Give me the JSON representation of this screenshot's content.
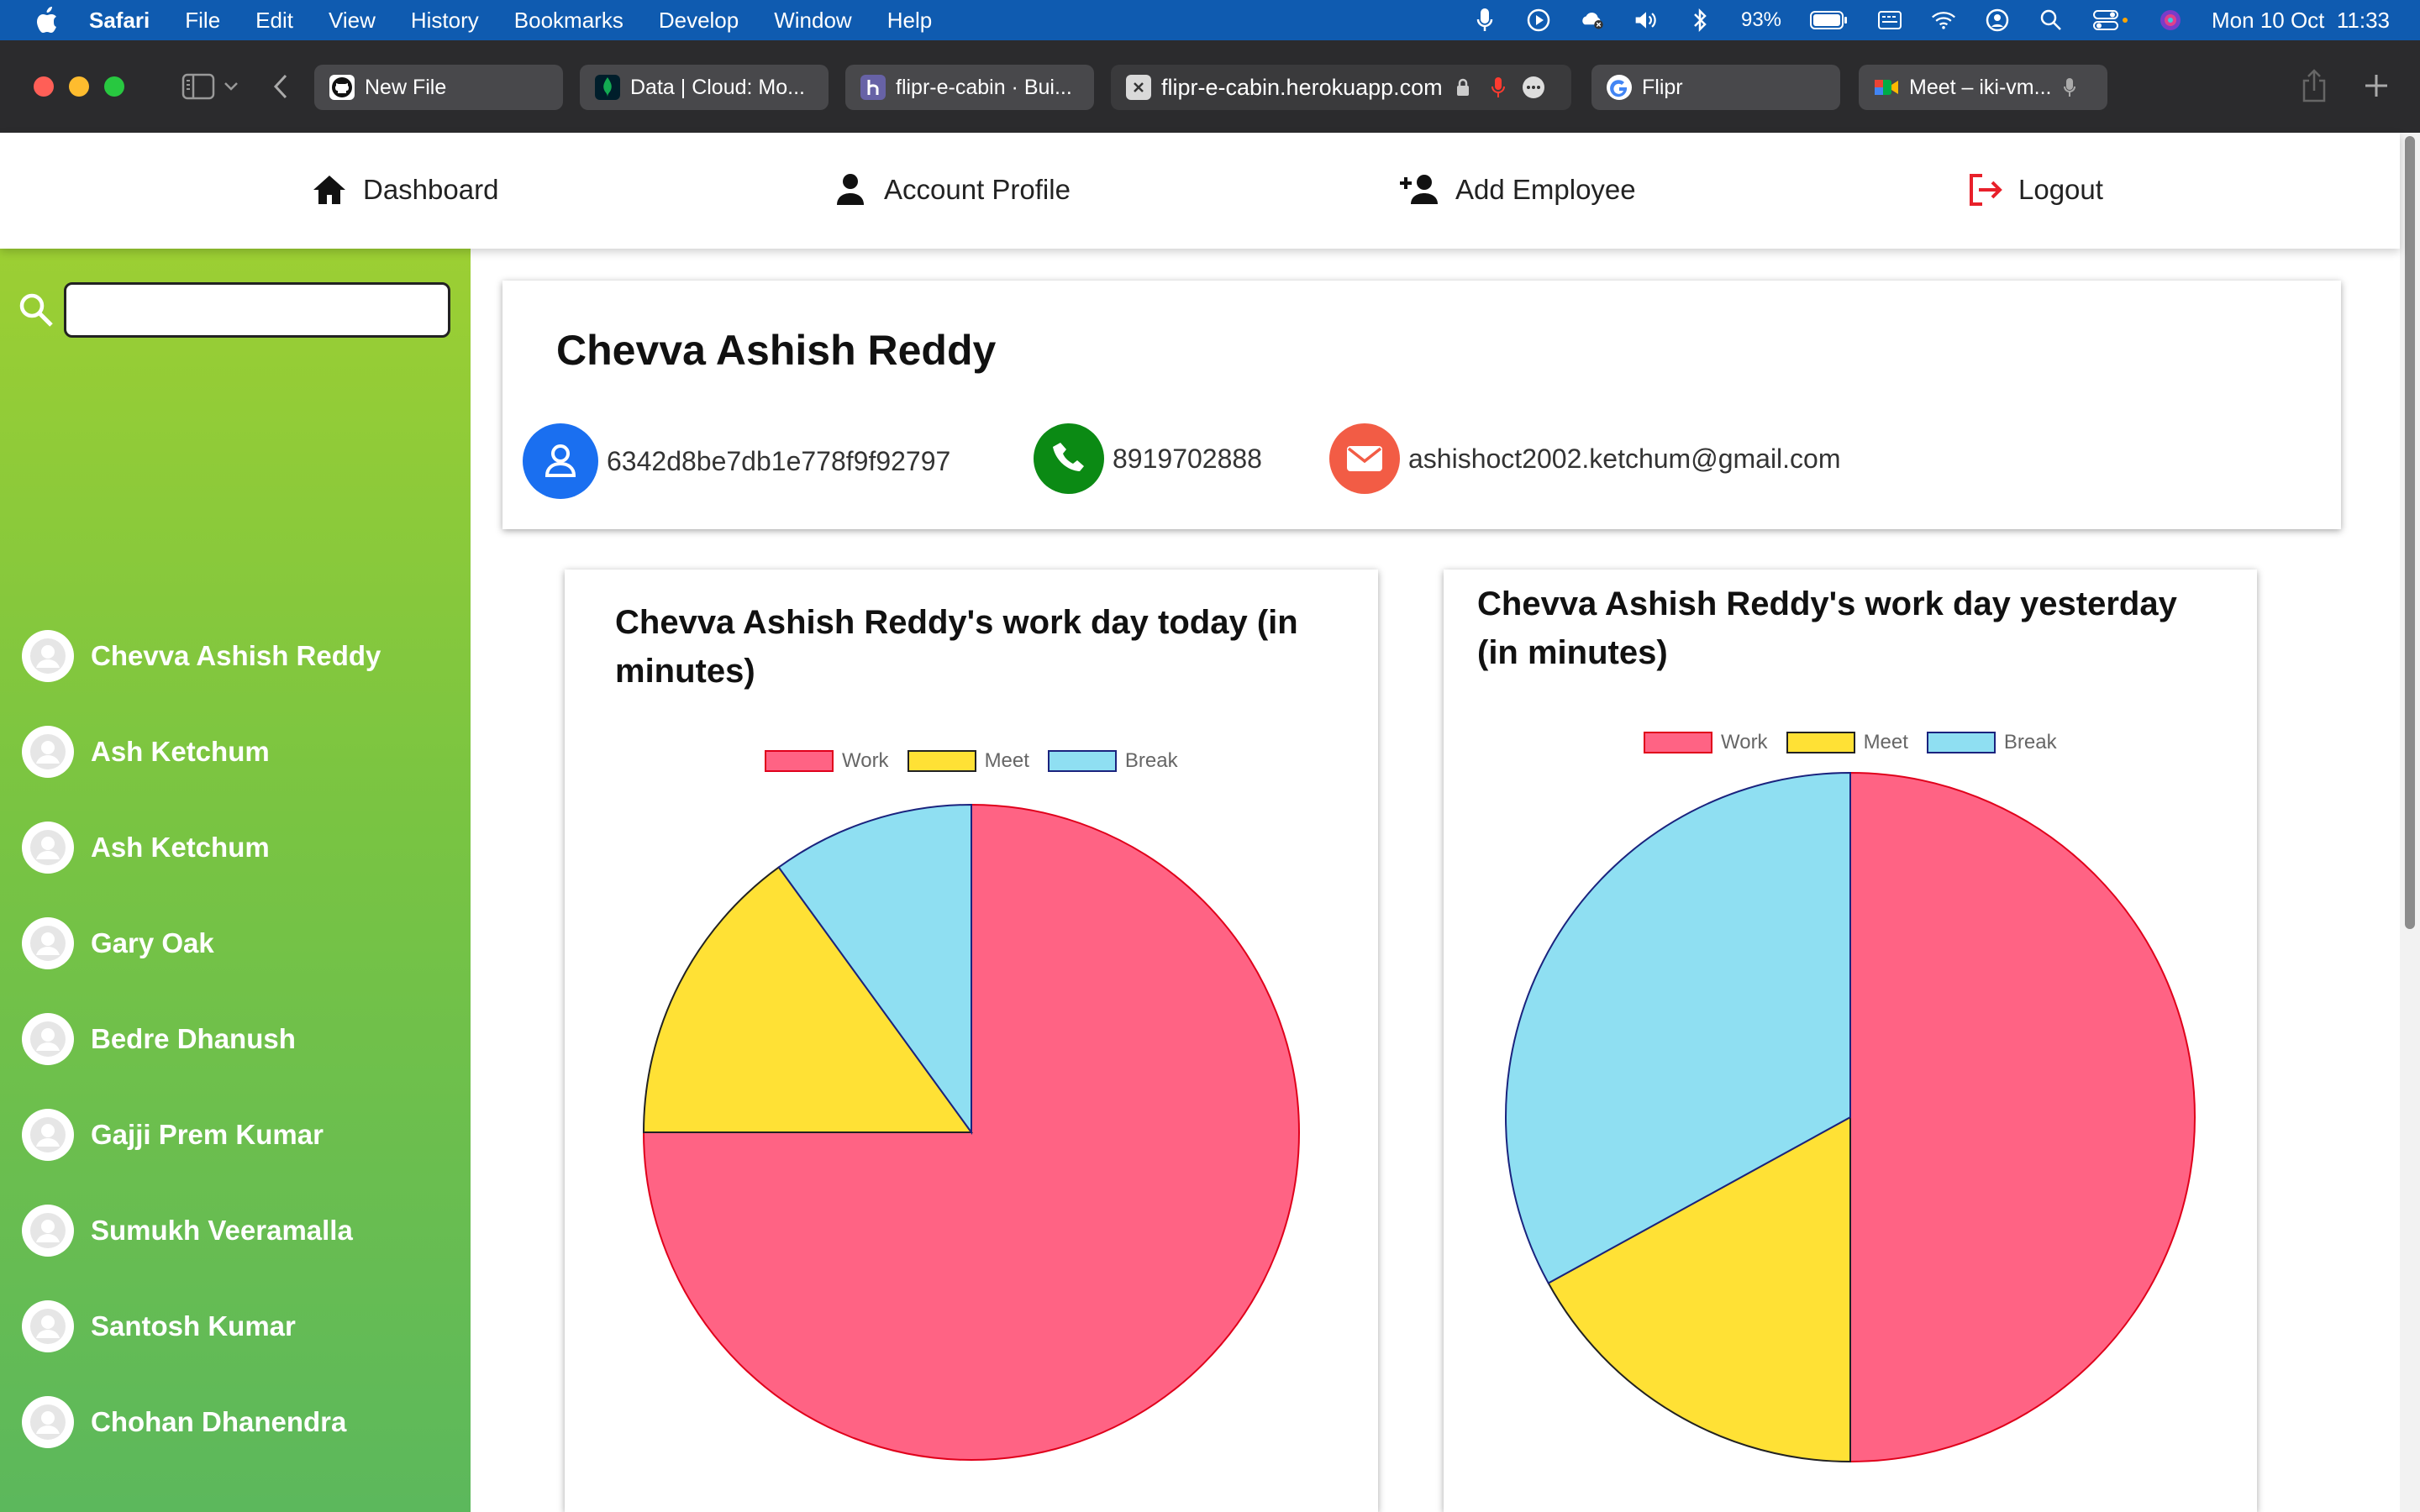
{
  "menubar": {
    "app_name": "Safari",
    "items": [
      "File",
      "Edit",
      "View",
      "History",
      "Bookmarks",
      "Develop",
      "Window",
      "Help"
    ],
    "battery": "93%",
    "datetime": "Mon 10 Oct  11:33"
  },
  "browser": {
    "tabs": [
      {
        "label": "New File",
        "icon": "github-icon"
      },
      {
        "label": "Data | Cloud: Mo...",
        "icon": "mongodb-leaf-icon"
      },
      {
        "label": "flipr-e-cabin · Bui...",
        "icon": "heroku-icon"
      },
      {
        "label": "flipr-e-cabin.herokuapp.com",
        "icon": "close-icon"
      },
      {
        "label": "Flipr",
        "icon": "google-icon"
      },
      {
        "label": "Meet – iki-vm...",
        "icon": "google-meet-icon"
      }
    ]
  },
  "nav": {
    "dashboard": "Dashboard",
    "account_profile": "Account Profile",
    "add_employee": "Add Employee",
    "logout": "Logout"
  },
  "sidebar": {
    "search_value": "",
    "employees": [
      "Chevva Ashish Reddy",
      "Ash Ketchum",
      "Ash Ketchum",
      "Gary Oak",
      "Bedre Dhanush",
      "Gajji Prem Kumar",
      "Sumukh Veeramalla",
      "Santosh Kumar",
      "Chohan Dhanendra"
    ]
  },
  "profile": {
    "name": "Chevva Ashish Reddy",
    "id": "6342d8be7db1e778f9f92797",
    "phone": "8919702888",
    "email": "ashishoct2002.ketchum@gmail.com"
  },
  "colors": {
    "work": "#ff6384",
    "meet": "#ffe135",
    "break": "#8fdff2"
  },
  "chart_data": [
    {
      "type": "pie",
      "title": "Chevva Ashish Reddy's work day today (in minutes)",
      "title_lines": [
        "Chevva Ashish Reddy's work day today (in",
        "minutes)"
      ],
      "categories": [
        "Work",
        "Meet",
        "Break"
      ],
      "values": [
        75,
        15,
        10
      ],
      "legend": "top"
    },
    {
      "type": "pie",
      "title": "Chevva Ashish Reddy's work day yesterday (in minutes)",
      "title_lines": [
        "Chevva Ashish Reddy's work day yesterday",
        "(in minutes)"
      ],
      "categories": [
        "Work",
        "Meet",
        "Break"
      ],
      "values": [
        50,
        17,
        33
      ],
      "legend": "top"
    }
  ]
}
